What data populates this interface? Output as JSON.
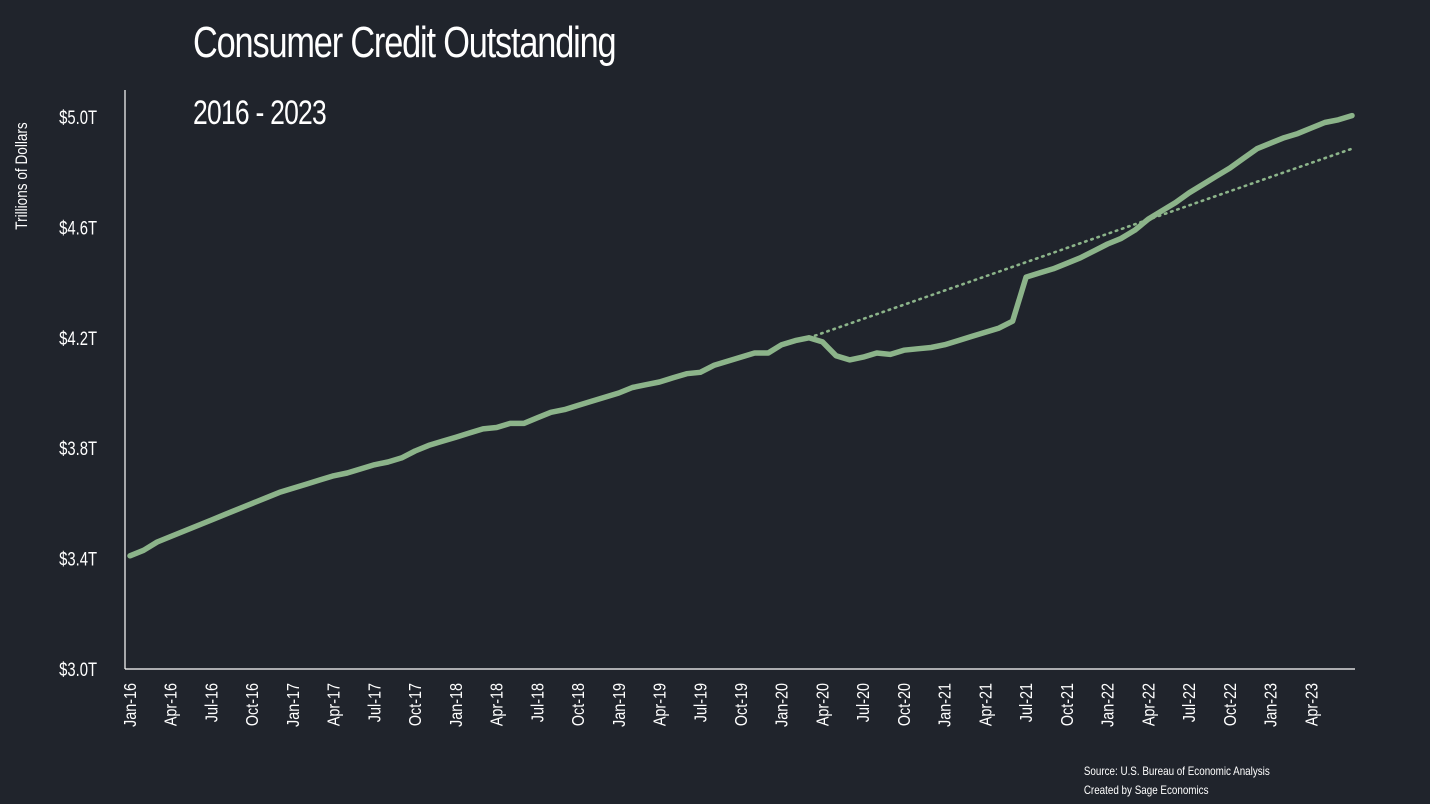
{
  "chart_data": {
    "type": "line",
    "title": "Consumer Credit Outstanding",
    "subtitle": "2016 - 2023",
    "ylabel": "Trillions of Dollars",
    "xlabel": "",
    "ylim": [
      3.0,
      5.0
    ],
    "y_ticks": [
      {
        "value": 3.0,
        "label": "$3.0T"
      },
      {
        "value": 3.4,
        "label": "$3.4T"
      },
      {
        "value": 3.8,
        "label": "$3.8T"
      },
      {
        "value": 4.2,
        "label": "$4.2T"
      },
      {
        "value": 4.6,
        "label": "$4.6T"
      },
      {
        "value": 5.0,
        "label": "$5.0T"
      }
    ],
    "x_ticks": [
      {
        "value": "2016-01",
        "label": "Jan-16"
      },
      {
        "value": "2016-04",
        "label": "Apr-16"
      },
      {
        "value": "2016-07",
        "label": "Jul-16"
      },
      {
        "value": "2016-10",
        "label": "Oct-16"
      },
      {
        "value": "2017-01",
        "label": "Jan-17"
      },
      {
        "value": "2017-04",
        "label": "Apr-17"
      },
      {
        "value": "2017-07",
        "label": "Jul-17"
      },
      {
        "value": "2017-10",
        "label": "Oct-17"
      },
      {
        "value": "2018-01",
        "label": "Jan-18"
      },
      {
        "value": "2018-04",
        "label": "Apr-18"
      },
      {
        "value": "2018-07",
        "label": "Jul-18"
      },
      {
        "value": "2018-10",
        "label": "Oct-18"
      },
      {
        "value": "2019-01",
        "label": "Jan-19"
      },
      {
        "value": "2019-04",
        "label": "Apr-19"
      },
      {
        "value": "2019-07",
        "label": "Jul-19"
      },
      {
        "value": "2019-10",
        "label": "Oct-19"
      },
      {
        "value": "2020-01",
        "label": "Jan-20"
      },
      {
        "value": "2020-04",
        "label": "Apr-20"
      },
      {
        "value": "2020-07",
        "label": "Jul-20"
      },
      {
        "value": "2020-10",
        "label": "Oct-20"
      },
      {
        "value": "2021-01",
        "label": "Jan-21"
      },
      {
        "value": "2021-04",
        "label": "Apr-21"
      },
      {
        "value": "2021-07",
        "label": "Jul-21"
      },
      {
        "value": "2021-10",
        "label": "Oct-21"
      },
      {
        "value": "2022-01",
        "label": "Jan-22"
      },
      {
        "value": "2022-04",
        "label": "Apr-22"
      },
      {
        "value": "2022-07",
        "label": "Jul-22"
      },
      {
        "value": "2022-10",
        "label": "Oct-22"
      },
      {
        "value": "2023-01",
        "label": "Jan-23"
      },
      {
        "value": "2023-04",
        "label": "Apr-23"
      }
    ],
    "series": [
      {
        "color": "#8cb48a",
        "style": "solid",
        "points": [
          [
            "2016-01",
            3.41
          ],
          [
            "2016-02",
            3.43
          ],
          [
            "2016-03",
            3.46
          ],
          [
            "2016-04",
            3.48
          ],
          [
            "2016-05",
            3.5
          ],
          [
            "2016-06",
            3.52
          ],
          [
            "2016-07",
            3.54
          ],
          [
            "2016-08",
            3.56
          ],
          [
            "2016-09",
            3.58
          ],
          [
            "2016-10",
            3.6
          ],
          [
            "2016-11",
            3.62
          ],
          [
            "2016-12",
            3.64
          ],
          [
            "2017-01",
            3.655
          ],
          [
            "2017-02",
            3.67
          ],
          [
            "2017-03",
            3.685
          ],
          [
            "2017-04",
            3.7
          ],
          [
            "2017-05",
            3.71
          ],
          [
            "2017-06",
            3.725
          ],
          [
            "2017-07",
            3.74
          ],
          [
            "2017-08",
            3.75
          ],
          [
            "2017-09",
            3.765
          ],
          [
            "2017-10",
            3.79
          ],
          [
            "2017-11",
            3.81
          ],
          [
            "2017-12",
            3.825
          ],
          [
            "2018-01",
            3.84
          ],
          [
            "2018-02",
            3.855
          ],
          [
            "2018-03",
            3.87
          ],
          [
            "2018-04",
            3.875
          ],
          [
            "2018-05",
            3.89
          ],
          [
            "2018-06",
            3.89
          ],
          [
            "2018-07",
            3.91
          ],
          [
            "2018-08",
            3.93
          ],
          [
            "2018-09",
            3.94
          ],
          [
            "2018-10",
            3.955
          ],
          [
            "2018-11",
            3.97
          ],
          [
            "2018-12",
            3.985
          ],
          [
            "2019-01",
            4.0
          ],
          [
            "2019-02",
            4.02
          ],
          [
            "2019-03",
            4.03
          ],
          [
            "2019-04",
            4.04
          ],
          [
            "2019-05",
            4.055
          ],
          [
            "2019-06",
            4.07
          ],
          [
            "2019-07",
            4.075
          ],
          [
            "2019-08",
            4.1
          ],
          [
            "2019-09",
            4.115
          ],
          [
            "2019-10",
            4.13
          ],
          [
            "2019-11",
            4.145
          ],
          [
            "2019-12",
            4.145
          ],
          [
            "2020-01",
            4.175
          ],
          [
            "2020-02",
            4.19
          ],
          [
            "2020-03",
            4.2
          ],
          [
            "2020-04",
            4.185
          ],
          [
            "2020-05",
            4.135
          ],
          [
            "2020-06",
            4.12
          ],
          [
            "2020-07",
            4.13
          ],
          [
            "2020-08",
            4.145
          ],
          [
            "2020-09",
            4.14
          ],
          [
            "2020-10",
            4.155
          ],
          [
            "2020-11",
            4.16
          ],
          [
            "2020-12",
            4.165
          ],
          [
            "2021-01",
            4.175
          ],
          [
            "2021-02",
            4.19
          ],
          [
            "2021-03",
            4.205
          ],
          [
            "2021-04",
            4.22
          ],
          [
            "2021-05",
            4.235
          ],
          [
            "2021-06",
            4.26
          ],
          [
            "2021-07",
            4.42
          ],
          [
            "2021-08",
            4.435
          ],
          [
            "2021-09",
            4.45
          ],
          [
            "2021-10",
            4.47
          ],
          [
            "2021-11",
            4.49
          ],
          [
            "2021-12",
            4.515
          ],
          [
            "2022-01",
            4.54
          ],
          [
            "2022-02",
            4.56
          ],
          [
            "2022-03",
            4.59
          ],
          [
            "2022-04",
            4.63
          ],
          [
            "2022-05",
            4.66
          ],
          [
            "2022-06",
            4.69
          ],
          [
            "2022-07",
            4.725
          ],
          [
            "2022-08",
            4.755
          ],
          [
            "2022-09",
            4.785
          ],
          [
            "2022-10",
            4.815
          ],
          [
            "2022-11",
            4.85
          ],
          [
            "2022-12",
            4.885
          ],
          [
            "2023-01",
            4.905
          ],
          [
            "2023-02",
            4.925
          ],
          [
            "2023-03",
            4.94
          ],
          [
            "2023-04",
            4.96
          ],
          [
            "2023-05",
            4.98
          ],
          [
            "2023-06",
            4.99
          ],
          [
            "2023-07",
            5.005
          ]
        ]
      },
      {
        "color": "#8cb48a",
        "style": "dotted",
        "points": [
          [
            "2020-03",
            4.2
          ],
          [
            "2023-07",
            4.885
          ]
        ]
      }
    ],
    "grid": false,
    "legend": "none"
  },
  "source_line1": "Source: U.S. Bureau of Economic Analysis",
  "source_line2": "Created by Sage Economics"
}
